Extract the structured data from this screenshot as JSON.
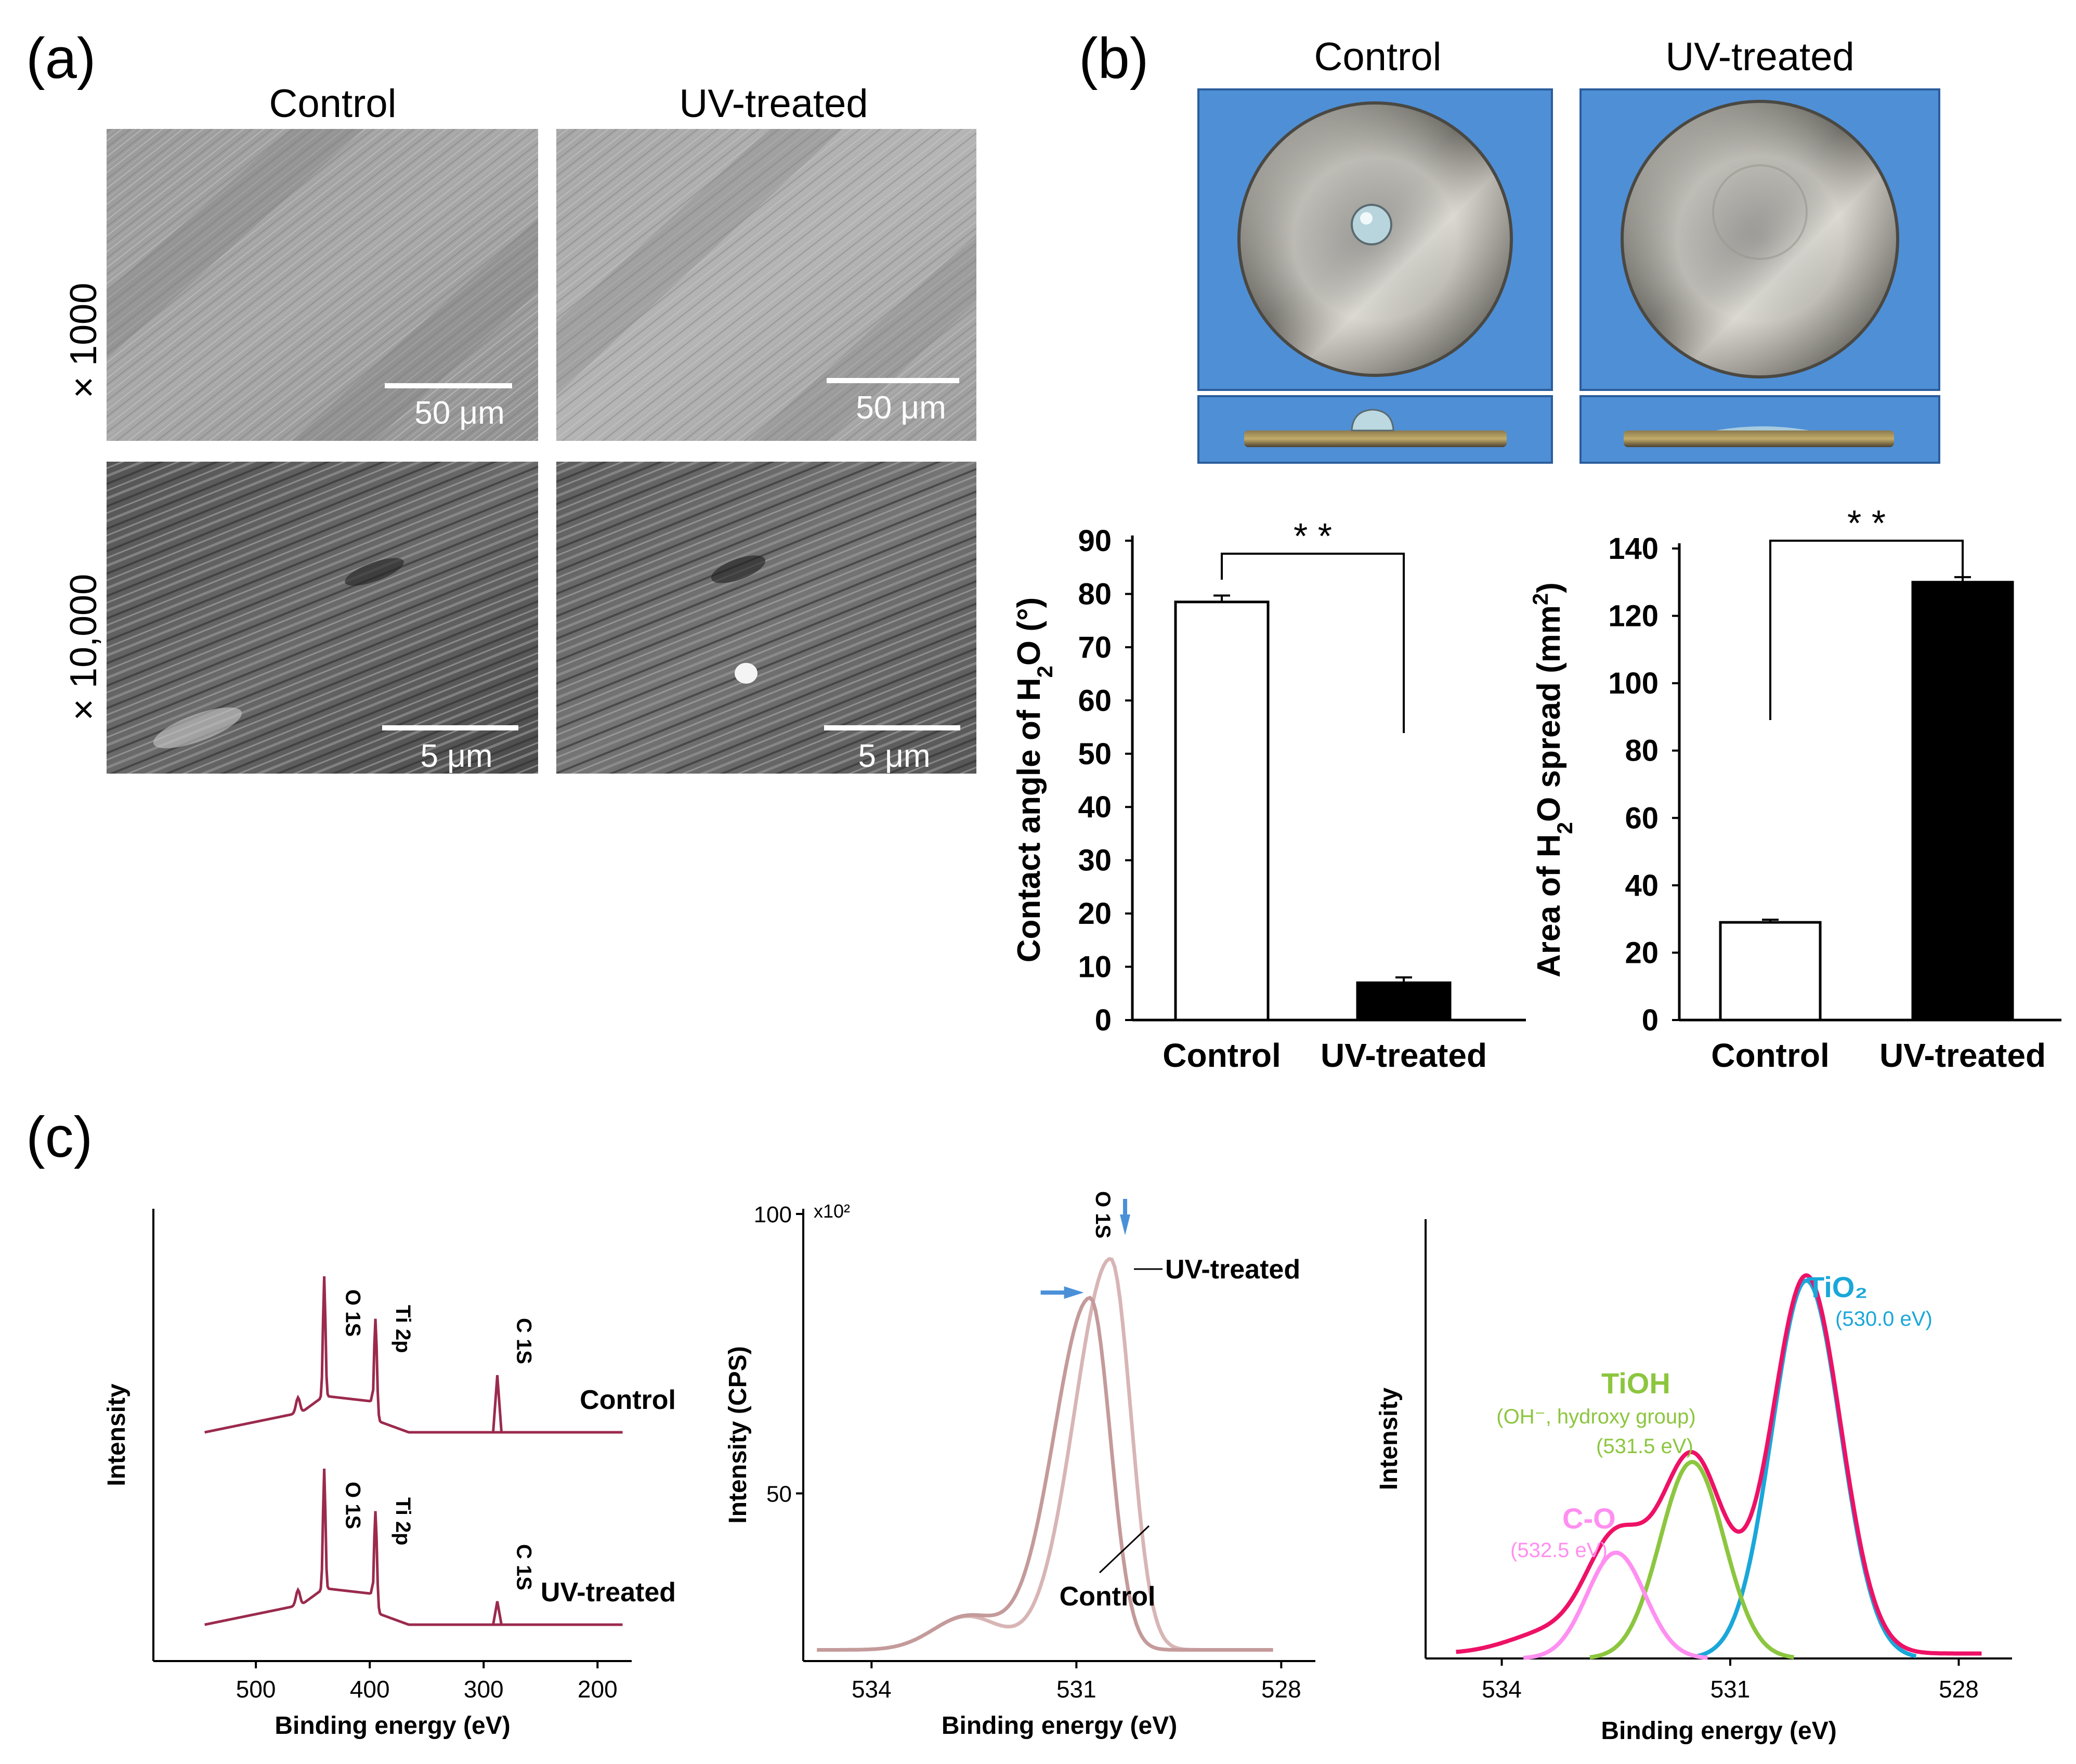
{
  "figure": {
    "panel_a": {
      "label": "(a)",
      "col_control": "Control",
      "col_uv": "UV-treated",
      "row_1000": "× 1000",
      "row_10000": "× 10,000",
      "scale_50_left": "50 μm",
      "scale_50_right": "50 μm",
      "scale_5_left": "5 μm",
      "scale_5_right": "5 μm"
    },
    "panel_b": {
      "label": "(b)",
      "photo_control": "Control",
      "photo_uv": "UV-treated",
      "photo_bg_color": "#4f8fd6"
    },
    "panel_c": {
      "label": "(c)"
    }
  },
  "chart_data": [
    {
      "id": "contact-angle",
      "type": "bar",
      "categories": [
        "Control",
        "UV-treated"
      ],
      "values": [
        78.5,
        7.0
      ],
      "errors": [
        1.2,
        1.0
      ],
      "fills": [
        "#ffffff",
        "#000000"
      ],
      "ylabel_main": "Contact angle of H",
      "ylabel_sub": "2",
      "ylabel_tail": "O  (°)",
      "ylim": [
        0,
        90
      ],
      "yticks": [
        0,
        10,
        20,
        30,
        40,
        50,
        60,
        70,
        80,
        90
      ],
      "significance": "* *"
    },
    {
      "id": "spread-area",
      "type": "bar",
      "categories": [
        "Control",
        "UV-treated"
      ],
      "values": [
        29,
        130
      ],
      "errors": [
        0.8,
        1.5
      ],
      "fills": [
        "#ffffff",
        "#000000"
      ],
      "ylabel_main": "Area of H",
      "ylabel_sub": "2",
      "ylabel_tail": "O spread (mm",
      "ylabel_sup": "2",
      "ylabel_end": ")",
      "ylim": [
        0,
        140
      ],
      "yticks": [
        0,
        20,
        40,
        60,
        80,
        100,
        120,
        140
      ],
      "significance": "* *"
    },
    {
      "id": "xps-survey",
      "type": "line",
      "xlabel": "Binding energy (eV)",
      "ylabel": "Intensity",
      "xlim": [
        590,
        170
      ],
      "xticks": [
        500,
        400,
        300,
        200
      ],
      "series": [
        {
          "name": "Control",
          "color": "#9b2a4d"
        },
        {
          "name": "UV-treated",
          "color": "#9b2a4d"
        }
      ],
      "peaks": {
        "o1s": "O 1S",
        "ti2p": "Ti 2p",
        "c1s": "C 1S"
      },
      "peak_positions_ev": {
        "o1s": 440,
        "ti2p": 395,
        "c1s": 288
      }
    },
    {
      "id": "xps-o1s",
      "type": "line",
      "xlabel": "Binding energy (eV)",
      "ylabel": "Intensity (CPS)",
      "xlim": [
        535,
        527.5
      ],
      "xticks": [
        534,
        531,
        528
      ],
      "yticks": [
        50,
        100
      ],
      "yscale_label": "x10²",
      "peak_label": "O 1S",
      "series": [
        {
          "name": "UV-treated",
          "peak_ev": 530.5,
          "peak_intensity": 92,
          "color": "#d8b5b5"
        },
        {
          "name": "Control",
          "peak_ev": 530.8,
          "peak_intensity": 85,
          "color": "#c49a9a"
        }
      ],
      "arrow_color": "#4a90d9"
    },
    {
      "id": "xps-fit",
      "type": "line",
      "xlabel": "Binding energy (eV)",
      "ylabel": "Intensity",
      "xlim": [
        535,
        527.3
      ],
      "xticks": [
        534,
        531,
        528
      ],
      "components": [
        {
          "name": "TiO₂",
          "detail": "(530.0 eV)",
          "center_ev": 530.0,
          "height": 1.0,
          "sigma": 0.45,
          "color": "#1aa7d9"
        },
        {
          "name": "TiOH",
          "detail1": "(OH⁻, hydroxy group)",
          "detail2": "(531.5 eV)",
          "center_ev": 531.5,
          "height": 0.52,
          "sigma": 0.42,
          "color": "#8cc63f"
        },
        {
          "name": "C-O",
          "detail": "(532.5 eV)",
          "center_ev": 532.5,
          "height": 0.28,
          "sigma": 0.38,
          "color": "#ff8ff0"
        }
      ],
      "envelope_color": "#ee1166"
    }
  ]
}
